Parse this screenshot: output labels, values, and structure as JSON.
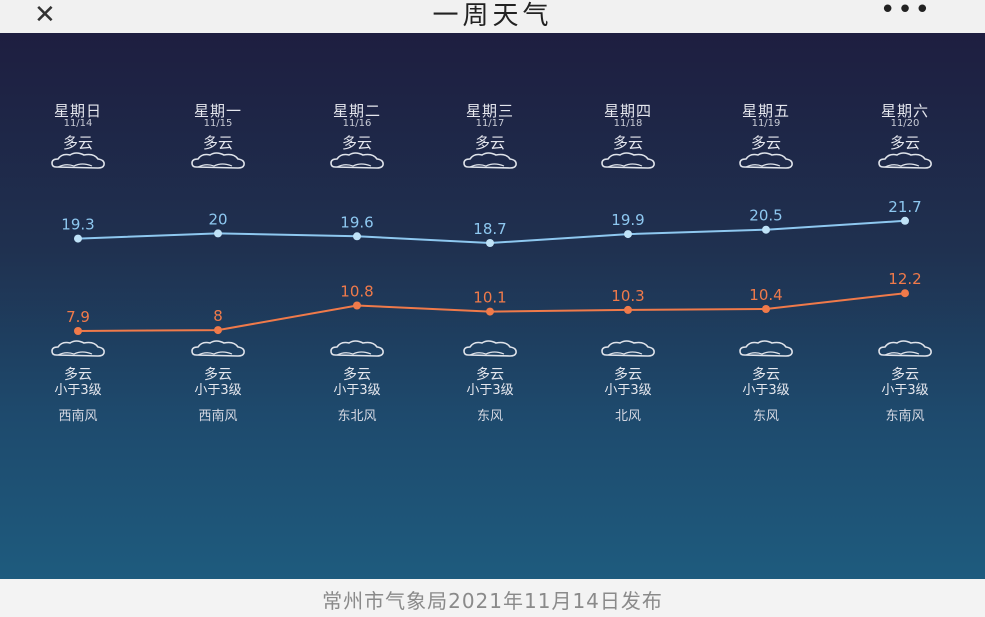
{
  "header": {
    "close_icon": "close-icon",
    "title": "一周天气",
    "more_icon": "more-icon"
  },
  "days": [
    {
      "weekday": "星期日",
      "date": "11/14",
      "cond_day": "多云",
      "cond_night": "多云",
      "wind": "小于3级",
      "wind_dir": "西南风"
    },
    {
      "weekday": "星期一",
      "date": "11/15",
      "cond_day": "多云",
      "cond_night": "多云",
      "wind": "小于3级",
      "wind_dir": "西南风"
    },
    {
      "weekday": "星期二",
      "date": "11/16",
      "cond_day": "多云",
      "cond_night": "多云",
      "wind": "小于3级",
      "wind_dir": "东北风"
    },
    {
      "weekday": "星期三",
      "date": "11/17",
      "cond_day": "多云",
      "cond_night": "多云",
      "wind": "小于3级",
      "wind_dir": "东风"
    },
    {
      "weekday": "星期四",
      "date": "11/18",
      "cond_day": "多云",
      "cond_night": "多云",
      "wind": "小于3级",
      "wind_dir": "北风"
    },
    {
      "weekday": "星期五",
      "date": "11/19",
      "cond_day": "多云",
      "cond_night": "多云",
      "wind": "小于3级",
      "wind_dir": "东风"
    },
    {
      "weekday": "星期六",
      "date": "11/20",
      "cond_day": "多云",
      "cond_night": "多云",
      "wind": "小于3级",
      "wind_dir": "东南风"
    }
  ],
  "chart_data": {
    "type": "line",
    "categories": [
      "11/14",
      "11/15",
      "11/16",
      "11/17",
      "11/18",
      "11/19",
      "11/20"
    ],
    "series": [
      {
        "values": [
          19.3,
          20,
          19.6,
          18.7,
          19.9,
          20.5,
          21.7
        ],
        "labels": [
          "19.3",
          "20",
          "19.6",
          "18.7",
          "19.9",
          "20.5",
          "21.7"
        ],
        "color": "#8ec8f0"
      },
      {
        "values": [
          7.9,
          8,
          10.8,
          10.1,
          10.3,
          10.4,
          12.2
        ],
        "labels": [
          "7.9",
          "8",
          "10.8",
          "10.1",
          "10.3",
          "10.4",
          "12.2"
        ],
        "color": "#f07a4a"
      }
    ]
  },
  "footer": {
    "text": "常州市气象局2021年11月14日发布"
  },
  "icons": {
    "weather": "cloud-icon"
  }
}
